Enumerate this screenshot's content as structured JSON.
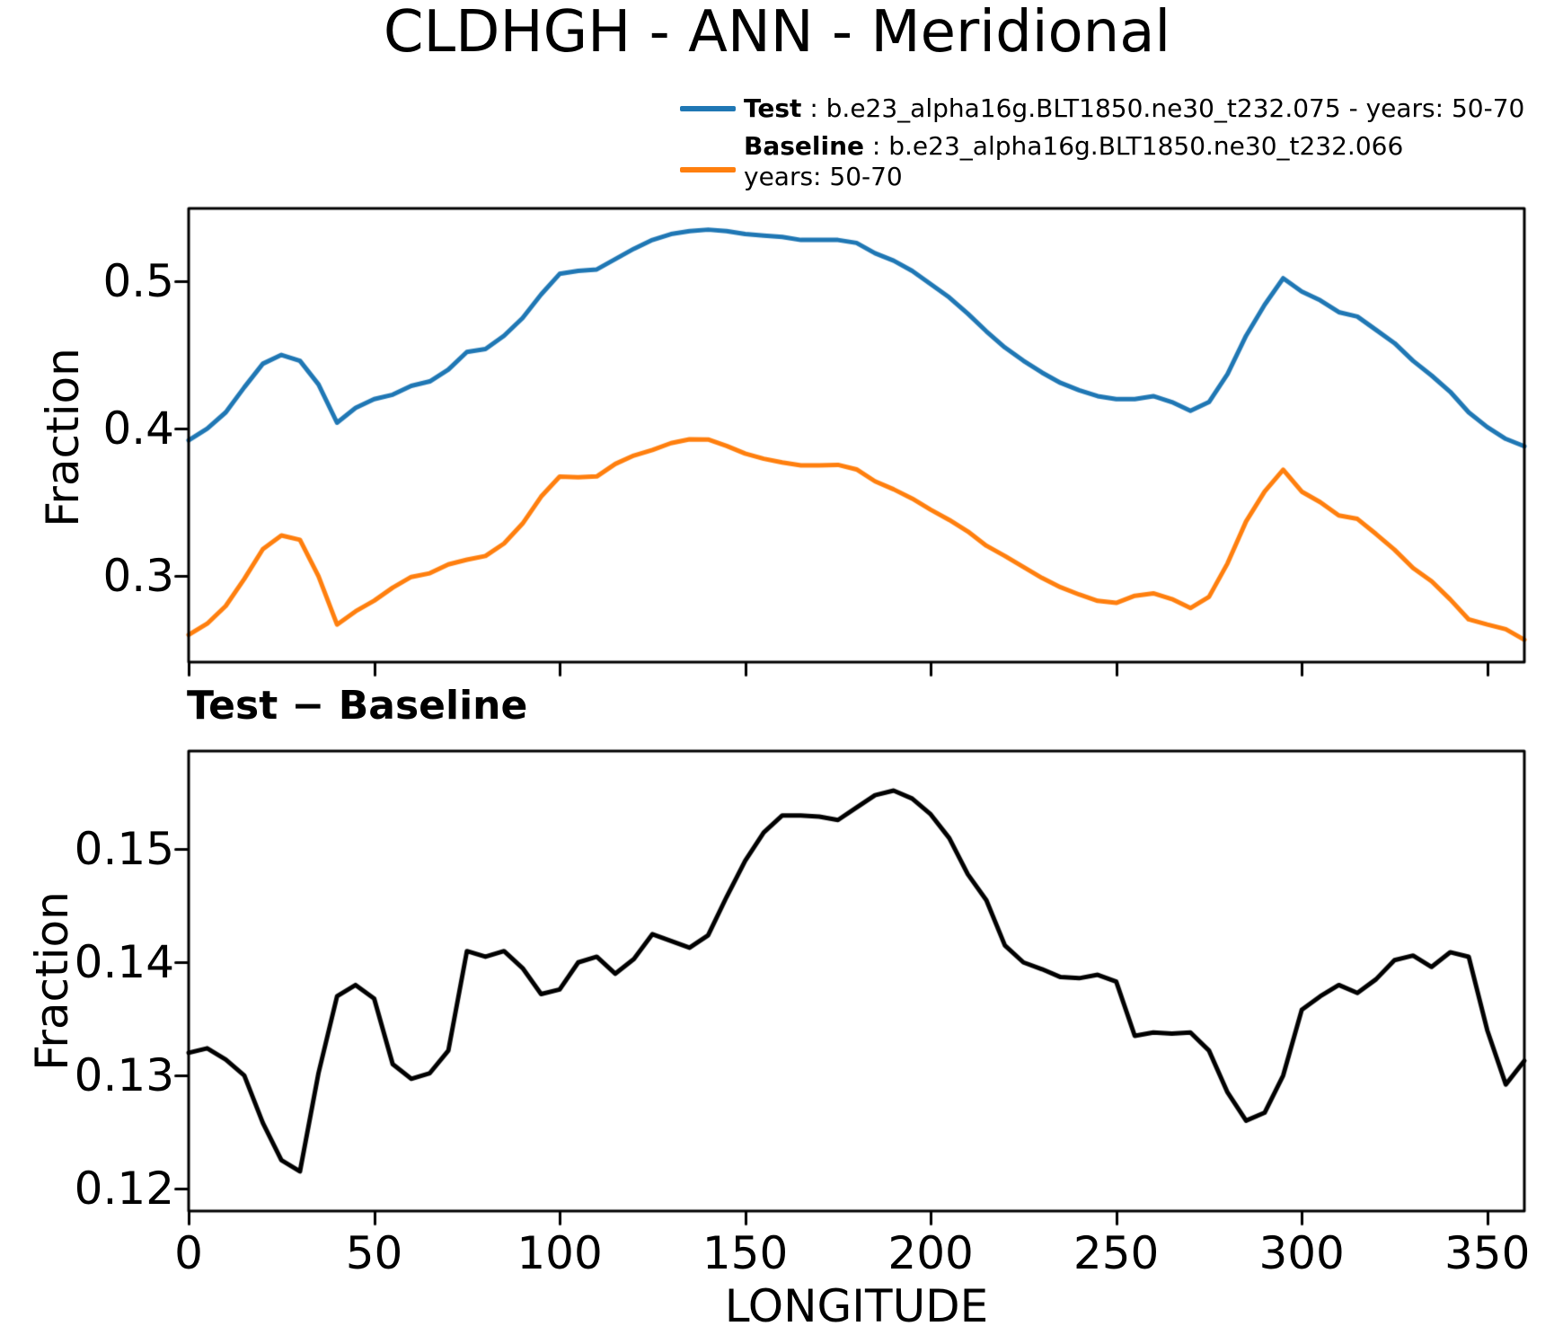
{
  "title": "CLDHGH - ANN - Meridional",
  "legend": {
    "position": "top-right",
    "entries": [
      {
        "name": "Test",
        "label": "Test",
        "desc": " : b.e23_alpha16g.BLT1850.ne30_t232.075 - years: 50-70",
        "desc2": "",
        "color": "#1f77b4"
      },
      {
        "name": "Baseline",
        "label": "Baseline",
        "desc": " : b.e23_alpha16g.BLT1850.ne30_t232.066",
        "desc2": "years: 50-70",
        "color": "#ff7f0e"
      }
    ]
  },
  "chart_data": [
    {
      "id": "main-panel",
      "type": "line",
      "title": "",
      "xlabel": "",
      "ylabel": "Fraction",
      "xlim": [
        0,
        360
      ],
      "ylim": [
        0.2415,
        0.5494
      ],
      "xticks": [
        0,
        50,
        100,
        150,
        200,
        250,
        300,
        350
      ],
      "xtick_labels": [],
      "yticks": [
        0.5,
        0.4,
        0.3
      ],
      "ytick_labels": [
        "0.5",
        "0.4",
        "0.3"
      ],
      "grid": false,
      "legend_position": "above top right",
      "x": [
        0,
        5,
        10,
        15,
        20,
        25,
        30,
        35,
        40,
        45,
        50,
        55,
        60,
        65,
        70,
        75,
        80,
        85,
        90,
        95,
        100,
        105,
        110,
        115,
        120,
        125,
        130,
        135,
        140,
        145,
        150,
        155,
        160,
        165,
        170,
        175,
        180,
        185,
        190,
        195,
        200,
        205,
        210,
        215,
        220,
        225,
        230,
        235,
        240,
        245,
        250,
        255,
        260,
        265,
        270,
        275,
        280,
        285,
        290,
        295,
        300,
        305,
        310,
        315,
        320,
        325,
        330,
        335,
        340,
        345,
        350,
        355,
        360
      ],
      "series": [
        {
          "name": "Test",
          "color": "#1f77b4",
          "values": [
            0.392,
            0.4,
            0.411,
            0.428,
            0.444,
            0.45,
            0.446,
            0.43,
            0.404,
            0.414,
            0.42,
            0.423,
            0.429,
            0.432,
            0.44,
            0.452,
            0.454,
            0.463,
            0.475,
            0.491,
            0.505,
            0.507,
            0.508,
            0.515,
            0.522,
            0.528,
            0.532,
            0.534,
            0.535,
            0.534,
            0.532,
            0.531,
            0.53,
            0.528,
            0.528,
            0.528,
            0.526,
            0.519,
            0.514,
            0.507,
            0.498,
            0.489,
            0.478,
            0.466,
            0.455,
            0.446,
            0.438,
            0.431,
            0.426,
            0.422,
            0.42,
            0.42,
            0.422,
            0.418,
            0.412,
            0.418,
            0.437,
            0.463,
            0.484,
            0.502,
            0.493,
            0.487,
            0.479,
            0.476,
            0.467,
            0.458,
            0.446,
            0.436,
            0.425,
            0.411,
            0.401,
            0.393,
            0.388
          ]
        },
        {
          "name": "Baseline",
          "color": "#ff7f0e",
          "values": [
            0.26,
            0.2676,
            0.2796,
            0.298,
            0.3182,
            0.3275,
            0.3245,
            0.2998,
            0.267,
            0.276,
            0.2832,
            0.292,
            0.2993,
            0.3018,
            0.3078,
            0.311,
            0.3135,
            0.322,
            0.3355,
            0.3538,
            0.3674,
            0.367,
            0.3675,
            0.376,
            0.3817,
            0.3855,
            0.3901,
            0.3927,
            0.3926,
            0.3882,
            0.383,
            0.3795,
            0.377,
            0.375,
            0.3751,
            0.3754,
            0.3723,
            0.3642,
            0.3588,
            0.3525,
            0.3449,
            0.338,
            0.3302,
            0.3205,
            0.3135,
            0.306,
            0.2986,
            0.2923,
            0.2874,
            0.2831,
            0.2817,
            0.2865,
            0.2882,
            0.2843,
            0.2782,
            0.2858,
            0.3085,
            0.337,
            0.3573,
            0.372,
            0.3572,
            0.35,
            0.341,
            0.3387,
            0.3285,
            0.3178,
            0.3054,
            0.2964,
            0.2841,
            0.2705,
            0.267,
            0.2638,
            0.2567
          ]
        }
      ]
    },
    {
      "id": "diff-panel",
      "type": "line",
      "title": "Test − Baseline",
      "xlabel": "LONGITUDE",
      "ylabel": "Fraction",
      "xlim": [
        0,
        360
      ],
      "ylim": [
        0.118,
        0.1587
      ],
      "xticks": [
        0,
        50,
        100,
        150,
        200,
        250,
        300,
        350
      ],
      "xtick_labels": [
        "0",
        "50",
        "100",
        "150",
        "200",
        "250",
        "300",
        "350"
      ],
      "yticks": [
        0.15,
        0.14,
        0.13,
        0.12
      ],
      "ytick_labels": [
        "0.15",
        "0.14",
        "0.13",
        "0.12"
      ],
      "grid": false,
      "x": [
        0,
        5,
        10,
        15,
        20,
        25,
        30,
        35,
        40,
        45,
        50,
        55,
        60,
        65,
        70,
        75,
        80,
        85,
        90,
        95,
        100,
        105,
        110,
        115,
        120,
        125,
        130,
        135,
        140,
        145,
        150,
        155,
        160,
        165,
        170,
        175,
        180,
        185,
        190,
        195,
        200,
        205,
        210,
        215,
        220,
        225,
        230,
        235,
        240,
        245,
        250,
        255,
        260,
        265,
        270,
        275,
        280,
        285,
        290,
        295,
        300,
        305,
        310,
        315,
        320,
        325,
        330,
        335,
        340,
        345,
        350,
        355,
        360
      ],
      "series": [
        {
          "name": "Test - Baseline",
          "color": "#000000",
          "values": [
            0.132,
            0.1324,
            0.1314,
            0.13,
            0.1258,
            0.1225,
            0.1215,
            0.1302,
            0.137,
            0.138,
            0.1368,
            0.131,
            0.1297,
            0.1302,
            0.1322,
            0.141,
            0.1405,
            0.141,
            0.1395,
            0.1372,
            0.1376,
            0.14,
            0.1405,
            0.139,
            0.1403,
            0.1425,
            0.1419,
            0.1413,
            0.1424,
            0.1458,
            0.149,
            0.1515,
            0.153,
            0.153,
            0.1529,
            0.1526,
            0.1537,
            0.1548,
            0.1552,
            0.1545,
            0.1531,
            0.151,
            0.1478,
            0.1455,
            0.1415,
            0.14,
            0.1394,
            0.1387,
            0.1386,
            0.1389,
            0.1383,
            0.1335,
            0.1338,
            0.1337,
            0.1338,
            0.1322,
            0.1285,
            0.126,
            0.1267,
            0.13,
            0.1358,
            0.137,
            0.138,
            0.1373,
            0.1385,
            0.1402,
            0.1406,
            0.1396,
            0.1409,
            0.1405,
            0.134,
            0.1292,
            0.1313
          ]
        }
      ]
    }
  ]
}
